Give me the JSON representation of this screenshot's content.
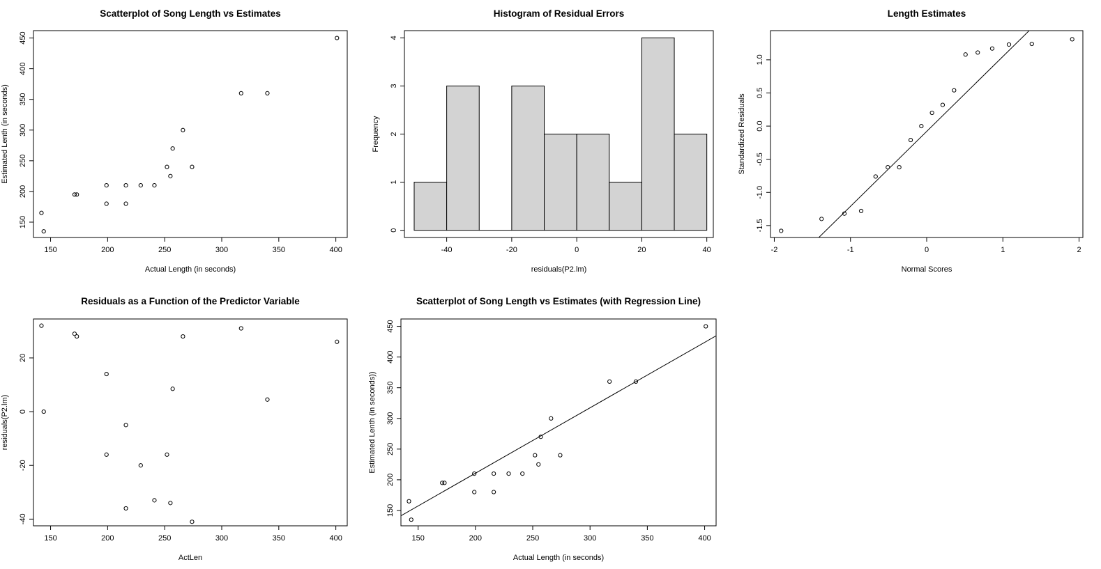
{
  "chart_data": [
    {
      "id": "scatter",
      "type": "scatter",
      "title": "Scatterplot of Song Length vs Estimates",
      "xlabel": "Actual Length (in seconds)",
      "ylabel": "Estimated Lenth (in seconds)",
      "xlim": [
        135,
        410
      ],
      "ylim": [
        125,
        462
      ],
      "xticks": [
        150,
        200,
        250,
        300,
        350,
        400
      ],
      "yticks": [
        150,
        200,
        250,
        300,
        350,
        400,
        450
      ],
      "points": [
        {
          "x": 142,
          "y": 165
        },
        {
          "x": 144,
          "y": 135
        },
        {
          "x": 171,
          "y": 195
        },
        {
          "x": 173,
          "y": 195
        },
        {
          "x": 199,
          "y": 210
        },
        {
          "x": 199,
          "y": 180
        },
        {
          "x": 216,
          "y": 210
        },
        {
          "x": 216,
          "y": 180
        },
        {
          "x": 229,
          "y": 210
        },
        {
          "x": 241,
          "y": 210
        },
        {
          "x": 252,
          "y": 240
        },
        {
          "x": 255,
          "y": 225
        },
        {
          "x": 257,
          "y": 270
        },
        {
          "x": 266,
          "y": 300
        },
        {
          "x": 274,
          "y": 240
        },
        {
          "x": 317,
          "y": 360
        },
        {
          "x": 340,
          "y": 360
        },
        {
          "x": 401,
          "y": 450
        }
      ]
    },
    {
      "id": "histogram",
      "type": "bar",
      "title": "Histogram of Residual Errors",
      "xlabel": "residuals(P2.lm)",
      "ylabel": "Frequency",
      "xlim": [
        -53,
        42
      ],
      "ylim": [
        -0.15,
        4.15
      ],
      "xticks": [
        -40,
        -20,
        0,
        20,
        40
      ],
      "yticks": [
        0,
        1,
        2,
        3,
        4
      ],
      "bins": [
        {
          "from": -50,
          "to": -40,
          "count": 1
        },
        {
          "from": -40,
          "to": -30,
          "count": 3
        },
        {
          "from": -30,
          "to": -20,
          "count": 0
        },
        {
          "from": -20,
          "to": -10,
          "count": 3
        },
        {
          "from": -10,
          "to": 0,
          "count": 2
        },
        {
          "from": 0,
          "to": 10,
          "count": 2
        },
        {
          "from": 10,
          "to": 20,
          "count": 1
        },
        {
          "from": 20,
          "to": 30,
          "count": 4
        },
        {
          "from": 30,
          "to": 40,
          "count": 2
        }
      ],
      "bar_fill": "#d3d3d3"
    },
    {
      "id": "qq",
      "type": "scatter",
      "title": "Length Estimates",
      "xlabel": "Normal Scores",
      "ylabel": "Standardized Residuals",
      "xlim": [
        -2.05,
        2.05
      ],
      "ylim": [
        -1.68,
        1.44
      ],
      "xticks": [
        -2,
        -1,
        0,
        1,
        2
      ],
      "yticks": [
        -1.5,
        -1.0,
        -0.5,
        0.0,
        0.5,
        1.0
      ],
      "ytick_labels": [
        "-1.5",
        "-1.0",
        "-0.5",
        "0.0",
        "0.5",
        "1.0"
      ],
      "points": [
        {
          "x": -1.91,
          "y": -1.58
        },
        {
          "x": -1.38,
          "y": -1.4
        },
        {
          "x": -1.08,
          "y": -1.32
        },
        {
          "x": -0.86,
          "y": -1.28
        },
        {
          "x": -0.67,
          "y": -0.76
        },
        {
          "x": -0.51,
          "y": -0.62
        },
        {
          "x": -0.36,
          "y": -0.62
        },
        {
          "x": -0.21,
          "y": -0.21
        },
        {
          "x": -0.07,
          "y": 0.0
        },
        {
          "x": 0.07,
          "y": 0.2
        },
        {
          "x": 0.21,
          "y": 0.32
        },
        {
          "x": 0.36,
          "y": 0.54
        },
        {
          "x": 0.51,
          "y": 1.08
        },
        {
          "x": 0.67,
          "y": 1.11
        },
        {
          "x": 0.86,
          "y": 1.17
        },
        {
          "x": 1.08,
          "y": 1.23
        },
        {
          "x": 1.38,
          "y": 1.24
        },
        {
          "x": 1.91,
          "y": 1.31
        }
      ],
      "reference_line": {
        "intercept": -0.08,
        "slope": 1.13
      }
    },
    {
      "id": "residuals",
      "type": "scatter",
      "title": "Residuals as a Function of the Predictor Variable",
      "xlabel": "ActLen",
      "ylabel": "residuals(P2.lm)",
      "xlim": [
        135,
        410
      ],
      "ylim": [
        -42.5,
        34.5
      ],
      "xticks": [
        150,
        200,
        250,
        300,
        350,
        400
      ],
      "yticks": [
        -40,
        -20,
        0,
        20
      ],
      "points": [
        {
          "x": 142,
          "y": 32
        },
        {
          "x": 144,
          "y": 0
        },
        {
          "x": 171,
          "y": 29
        },
        {
          "x": 173,
          "y": 28
        },
        {
          "x": 199,
          "y": 14
        },
        {
          "x": 199,
          "y": -16
        },
        {
          "x": 216,
          "y": -5
        },
        {
          "x": 216,
          "y": -36
        },
        {
          "x": 229,
          "y": -20
        },
        {
          "x": 241,
          "y": -33
        },
        {
          "x": 252,
          "y": -16
        },
        {
          "x": 255,
          "y": -34
        },
        {
          "x": 257,
          "y": 8.5
        },
        {
          "x": 266,
          "y": 28
        },
        {
          "x": 274,
          "y": -41
        },
        {
          "x": 317,
          "y": 31
        },
        {
          "x": 340,
          "y": 4.5
        },
        {
          "x": 401,
          "y": 26
        }
      ]
    },
    {
      "id": "regression",
      "type": "scatter",
      "title": "Scatterplot of Song Length vs Estimates (with Regression Line)",
      "xlabel": "Actual Length (in seconds)",
      "ylabel": "Estimated Lenth (in seconds))",
      "xlim": [
        135,
        410
      ],
      "ylim": [
        125,
        462
      ],
      "xticks": [
        150,
        200,
        250,
        300,
        350,
        400
      ],
      "yticks": [
        150,
        200,
        250,
        300,
        350,
        400,
        450
      ],
      "points": [
        {
          "x": 142,
          "y": 165
        },
        {
          "x": 144,
          "y": 135
        },
        {
          "x": 171,
          "y": 195
        },
        {
          "x": 173,
          "y": 195
        },
        {
          "x": 199,
          "y": 210
        },
        {
          "x": 199,
          "y": 180
        },
        {
          "x": 216,
          "y": 210
        },
        {
          "x": 216,
          "y": 180
        },
        {
          "x": 229,
          "y": 210
        },
        {
          "x": 241,
          "y": 210
        },
        {
          "x": 252,
          "y": 240
        },
        {
          "x": 255,
          "y": 225
        },
        {
          "x": 257,
          "y": 270
        },
        {
          "x": 266,
          "y": 300
        },
        {
          "x": 274,
          "y": 240
        },
        {
          "x": 317,
          "y": 360
        },
        {
          "x": 340,
          "y": 360
        },
        {
          "x": 401,
          "y": 450
        }
      ],
      "regression_line": {
        "intercept": -2.5,
        "slope": 1.066
      }
    }
  ]
}
